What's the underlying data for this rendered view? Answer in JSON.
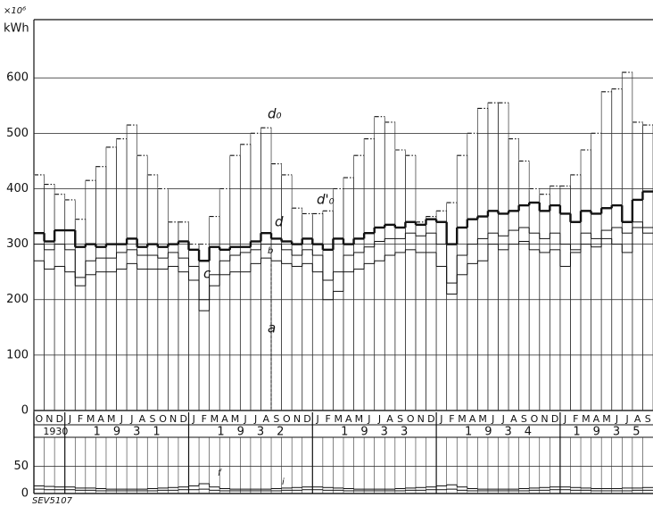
{
  "chart_data": [
    {
      "type": "step",
      "axis_label": [
        "×10⁶",
        "kWh"
      ],
      "categories": [
        "O",
        "N",
        "D",
        "J",
        "F",
        "M",
        "A",
        "M",
        "J",
        "J",
        "A",
        "S",
        "O",
        "N",
        "D",
        "J",
        "F",
        "M",
        "A",
        "M",
        "J",
        "J",
        "A",
        "S",
        "O",
        "N",
        "D",
        "J",
        "F",
        "M",
        "A",
        "M",
        "J",
        "J",
        "A",
        "S",
        "O",
        "N",
        "D",
        "J",
        "F",
        "M",
        "A",
        "M",
        "J",
        "J",
        "A",
        "S",
        "O",
        "N",
        "D",
        "J",
        "F",
        "M",
        "A",
        "M",
        "J",
        "J",
        "A",
        "S"
      ],
      "year_labels": [
        "1930",
        "1931",
        "1932",
        "1933",
        "1934",
        "1935"
      ],
      "ylim": [
        0,
        705
      ],
      "yticks": [
        0,
        100,
        200,
        300,
        400,
        500,
        600
      ],
      "grid": true,
      "series": [
        {
          "name": "d₀",
          "color": "#111",
          "values": [
            425,
            408,
            390,
            380,
            345,
            415,
            440,
            475,
            490,
            515,
            460,
            425,
            400,
            340,
            340,
            300,
            300,
            350,
            400,
            460,
            480,
            500,
            510,
            445,
            425,
            365,
            355,
            355,
            360,
            400,
            420,
            460,
            490,
            530,
            520,
            470,
            460,
            340,
            350,
            360,
            375,
            460,
            500,
            545,
            555,
            555,
            490,
            450,
            400,
            390,
            405,
            405,
            425,
            470,
            500,
            575,
            580,
            610,
            520,
            515
          ]
        },
        {
          "name": "d",
          "color": "#111",
          "values": [
            320,
            305,
            325,
            325,
            295,
            300,
            295,
            300,
            300,
            310,
            295,
            300,
            295,
            300,
            305,
            290,
            270,
            295,
            290,
            295,
            295,
            305,
            320,
            310,
            305,
            300,
            310,
            300,
            290,
            310,
            300,
            310,
            320,
            330,
            335,
            330,
            340,
            335,
            345,
            340,
            300,
            330,
            345,
            350,
            360,
            355,
            360,
            370,
            375,
            360,
            370,
            355,
            340,
            360,
            355,
            365,
            370,
            340,
            380,
            395
          ]
        },
        {
          "name": "b",
          "color": "#111",
          "values": [
            300,
            290,
            300,
            290,
            240,
            270,
            275,
            275,
            285,
            290,
            280,
            280,
            275,
            285,
            275,
            260,
            200,
            245,
            270,
            280,
            285,
            290,
            300,
            300,
            290,
            280,
            290,
            280,
            235,
            250,
            280,
            285,
            295,
            305,
            310,
            310,
            320,
            315,
            320,
            300,
            230,
            280,
            300,
            310,
            320,
            315,
            325,
            330,
            320,
            310,
            320,
            300,
            290,
            320,
            310,
            325,
            330,
            320,
            340,
            330
          ]
        },
        {
          "name": "a",
          "color": "#111",
          "values": [
            270,
            255,
            260,
            250,
            225,
            245,
            250,
            250,
            255,
            265,
            255,
            255,
            255,
            260,
            250,
            235,
            180,
            225,
            245,
            250,
            250,
            265,
            275,
            270,
            265,
            260,
            265,
            250,
            200,
            215,
            250,
            255,
            265,
            270,
            280,
            285,
            290,
            285,
            285,
            260,
            210,
            245,
            265,
            270,
            300,
            290,
            300,
            305,
            290,
            285,
            290,
            260,
            285,
            300,
            295,
            310,
            300,
            285,
            330,
            320
          ]
        }
      ],
      "annotations": [
        "d'₀",
        "c"
      ],
      "source": "SEV5107"
    },
    {
      "type": "step",
      "ylim": [
        0,
        100
      ],
      "yticks": [
        0,
        50
      ],
      "series": [
        {
          "name": "f",
          "color": "#111",
          "values": [
            14,
            13,
            12,
            12,
            10,
            10,
            9,
            8,
            8,
            8,
            8,
            9,
            10,
            11,
            12,
            14,
            18,
            12,
            9,
            8,
            8,
            8,
            8,
            9,
            10,
            11,
            12,
            12,
            11,
            10,
            9,
            8,
            8,
            8,
            8,
            9,
            10,
            11,
            12,
            14,
            16,
            12,
            9,
            8,
            8,
            8,
            8,
            9,
            10,
            11,
            12,
            12,
            11,
            10,
            9,
            9,
            9,
            10,
            10,
            11
          ]
        },
        {
          "name": "i",
          "color": "#111",
          "values": [
            8,
            7,
            7,
            7,
            6,
            6,
            5,
            5,
            5,
            5,
            5,
            5,
            6,
            6,
            7,
            7,
            8,
            6,
            5,
            5,
            5,
            5,
            5,
            5,
            6,
            6,
            7,
            7,
            6,
            6,
            5,
            5,
            5,
            5,
            5,
            5,
            6,
            6,
            7,
            7,
            8,
            6,
            5,
            5,
            5,
            5,
            5,
            5,
            6,
            6,
            7,
            7,
            6,
            6,
            5,
            5,
            5,
            5,
            6,
            6
          ]
        }
      ]
    }
  ]
}
